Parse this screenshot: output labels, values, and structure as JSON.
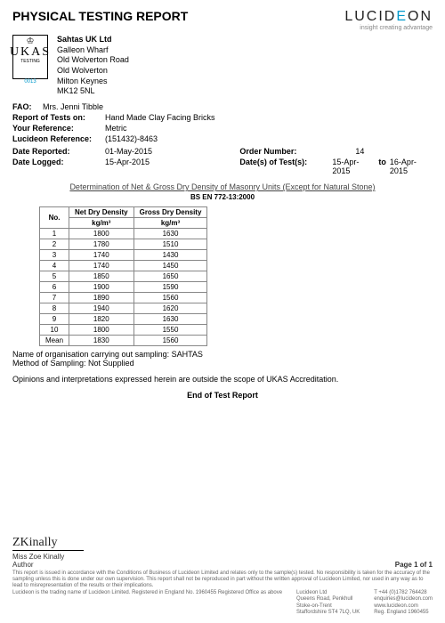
{
  "title": "PHYSICAL TESTING REPORT",
  "brand": {
    "name_start": "LUCID",
    "name_e": "E",
    "name_end": "ON",
    "tagline": "insight creating advantage"
  },
  "ukas": {
    "label": "UKAS",
    "sub": "TESTING",
    "num": "0013"
  },
  "company": {
    "name": "Sahtas UK Ltd",
    "l1": "Galleon Wharf",
    "l2": "Old Wolverton Road",
    "l3": "Old Wolverton",
    "l4": "Milton Keynes",
    "l5": "MK12 5NL"
  },
  "fields": {
    "fao_label": "FAO:",
    "fao": "Mrs. Jenni Tibble",
    "tests_on_label": "Report of Tests on:",
    "tests_on": "Hand Made Clay Facing Bricks",
    "your_ref_label": "Your Reference:",
    "your_ref": "Metric",
    "luc_ref_label": "Lucideon Reference:",
    "luc_ref": "(151432)-8463",
    "date_rep_label": "Date Reported:",
    "date_rep": "01-May-2015",
    "date_log_label": "Date Logged:",
    "date_log": "15-Apr-2015",
    "order_label": "Order Number:",
    "order": "14",
    "tests_date_label": "Date(s) of Test(s):",
    "tests_date_from": "15-Apr-2015",
    "to": "to",
    "tests_date_to": "16-Apr-2015"
  },
  "section_title": "Determination of Net & Gross Dry Density of Masonry Units (Except for Natural Stone)",
  "standard": "BS EN 772-13:2000",
  "table": {
    "h0": "No.",
    "h1": "Net Dry Density",
    "h2": "Gross Dry Density",
    "u": "kg/m³",
    "rows": [
      [
        "1",
        "1800",
        "1630"
      ],
      [
        "2",
        "1780",
        "1510"
      ],
      [
        "3",
        "1740",
        "1430"
      ],
      [
        "4",
        "1740",
        "1450"
      ],
      [
        "5",
        "1850",
        "1650"
      ],
      [
        "6",
        "1900",
        "1590"
      ],
      [
        "7",
        "1890",
        "1560"
      ],
      [
        "8",
        "1940",
        "1620"
      ],
      [
        "9",
        "1820",
        "1630"
      ],
      [
        "10",
        "1800",
        "1550"
      ],
      [
        "Mean",
        "1830",
        "1560"
      ]
    ]
  },
  "notes": {
    "sampling": "Name of organisation carrying out sampling: SAHTAS",
    "method": "Method of Sampling: Not Supplied",
    "opinion": "Opinions and interpretations expressed herein are outside the scope of UKAS Accreditation.",
    "end": "End of Test Report"
  },
  "footer": {
    "author_name": "Miss Zoe Kinally",
    "author_role": "Author",
    "page": "Page 1 of 1",
    "disclaimer": "This report is issued in accordance with the Conditions of Business of Lucideon Limited and relates only to the sample(s) tested. No responsibility is taken for the accuracy of the sampling unless this is done under our own supervision. This report shall not be reproduced in part without the written approval of Lucideon Limited, nor used in any way as to lead to misrepresentation of the results or their implications.",
    "reg": "Lucideon is the trading name of Lucideon Limited.  Registered in England No. 1960455  Registered Office as above",
    "c1": {
      "l1": "Lucideon Ltd",
      "l2": "Queens Road, Penkhull",
      "l3": "Stoke-on-Trent",
      "l4": "Staffordshire ST4 7LQ, UK"
    },
    "c2": {
      "l1": "T +44 (0)1782 764428",
      "l2": "enquiries@lucideon.com",
      "l3": "www.lucideon.com",
      "l4": "Reg. England 1960455"
    }
  }
}
